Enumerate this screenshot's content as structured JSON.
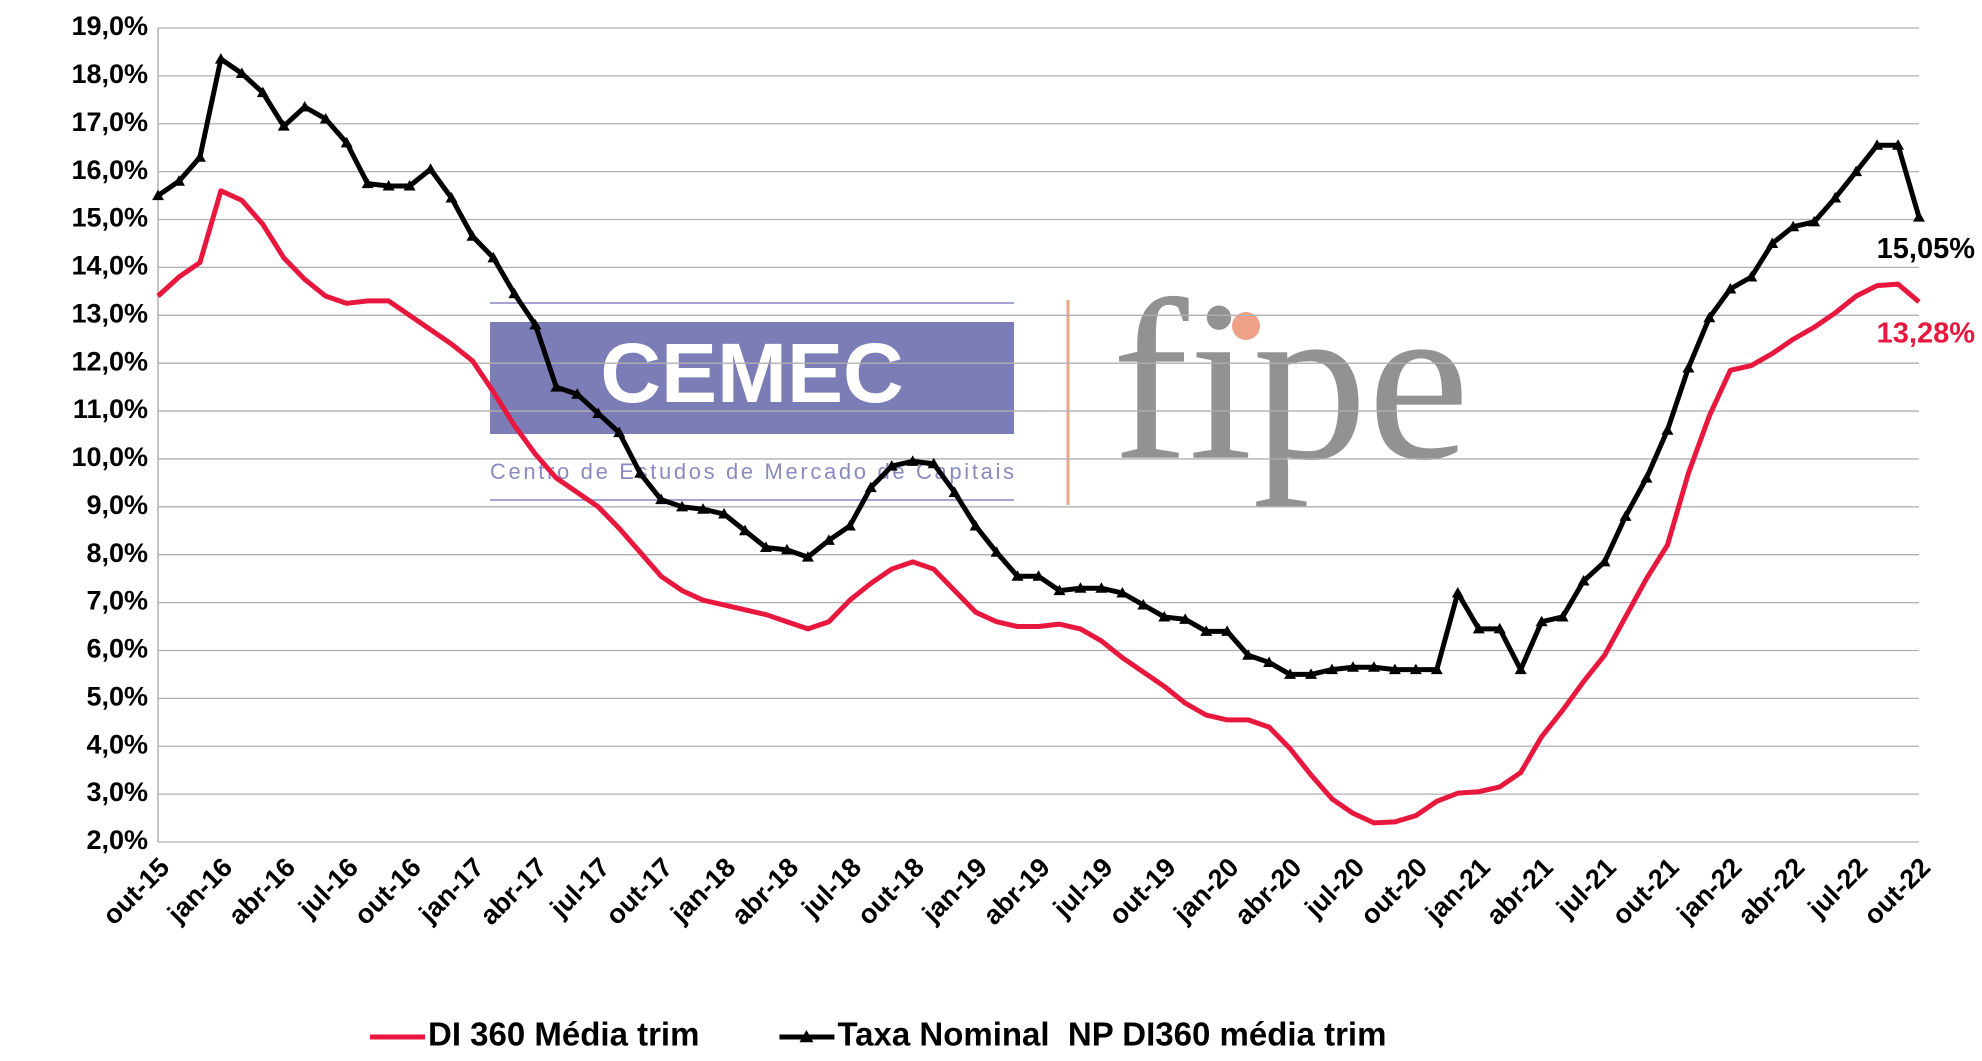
{
  "chart_data": {
    "type": "line",
    "categories": [
      "out-15",
      null,
      null,
      "jan-16",
      null,
      null,
      "abr-16",
      null,
      null,
      "jul-16",
      null,
      null,
      "out-16",
      null,
      null,
      "jan-17",
      null,
      null,
      "abr-17",
      null,
      null,
      "jul-17",
      null,
      null,
      "out-17",
      null,
      null,
      "jan-18",
      null,
      null,
      "abr-18",
      null,
      null,
      "jul-18",
      null,
      null,
      "out-18",
      null,
      null,
      "jan-19",
      null,
      null,
      "abr-19",
      null,
      null,
      "jul-19",
      null,
      null,
      "out-19",
      null,
      null,
      "jan-20",
      null,
      null,
      "abr-20",
      null,
      null,
      "jul-20",
      null,
      null,
      "out-20",
      null,
      null,
      "jan-21",
      null,
      null,
      "abr-21",
      null,
      null,
      "jul-21",
      null,
      null,
      "out-21",
      null,
      null,
      "jan-22",
      null,
      null,
      "abr-22",
      null,
      null,
      "jul-22",
      null,
      null,
      "out-22"
    ],
    "series": [
      {
        "name": "DI 360 Média trim",
        "color": "#e8173e",
        "marker": false,
        "values": [
          13.4,
          13.8,
          14.1,
          15.6,
          15.4,
          14.9,
          14.2,
          13.75,
          13.4,
          13.25,
          13.3,
          13.3,
          13.0,
          12.7,
          12.4,
          12.05,
          11.4,
          10.7,
          10.1,
          9.6,
          9.3,
          9.0,
          8.55,
          8.05,
          7.55,
          7.25,
          7.05,
          6.95,
          6.85,
          6.75,
          6.6,
          6.45,
          6.6,
          7.05,
          7.4,
          7.7,
          7.85,
          7.7,
          7.25,
          6.8,
          6.6,
          6.5,
          6.5,
          6.55,
          6.45,
          6.2,
          5.85,
          5.55,
          5.25,
          4.9,
          4.65,
          4.55,
          4.55,
          4.4,
          3.95,
          3.4,
          2.9,
          2.6,
          2.4,
          2.42,
          2.55,
          2.85,
          3.02,
          3.05,
          3.15,
          3.45,
          4.2,
          4.75,
          5.35,
          5.9,
          6.7,
          7.5,
          8.2,
          9.7,
          10.9,
          11.85,
          11.95,
          12.2,
          12.5,
          12.75,
          13.05,
          13.4,
          13.62,
          13.65,
          13.28
        ],
        "value_labels": [
          null,
          null,
          null,
          null,
          null,
          null,
          null,
          null,
          null,
          null,
          null,
          null,
          null,
          null,
          null,
          null,
          null,
          null,
          null,
          null,
          null,
          null,
          null,
          null,
          null,
          null,
          null,
          null,
          null,
          null,
          null,
          null,
          null,
          null,
          null,
          null,
          null,
          null,
          null,
          null,
          null,
          null,
          null,
          null,
          null,
          null,
          null,
          null,
          null,
          null,
          null,
          null,
          null,
          null,
          null,
          null,
          null,
          null,
          null,
          null,
          null,
          null,
          null,
          null,
          null,
          null,
          null,
          null,
          null,
          null,
          null,
          null,
          null,
          null,
          null,
          null,
          null,
          null,
          null,
          null,
          null,
          null,
          null,
          null,
          "13,28%"
        ]
      },
      {
        "name": "Taxa Nominal  NP DI360 média trim",
        "color": "#000000",
        "marker": true,
        "values": [
          15.5,
          15.8,
          16.3,
          18.35,
          18.05,
          17.65,
          16.95,
          17.35,
          17.1,
          16.6,
          15.75,
          15.7,
          15.7,
          16.05,
          15.45,
          14.65,
          14.2,
          13.45,
          12.8,
          11.5,
          11.35,
          10.95,
          10.55,
          9.7,
          9.15,
          9.0,
          8.95,
          8.85,
          8.5,
          8.15,
          8.1,
          7.95,
          8.3,
          8.6,
          9.4,
          9.85,
          9.95,
          9.9,
          9.3,
          8.6,
          8.05,
          7.55,
          7.55,
          7.25,
          7.3,
          7.3,
          7.2,
          6.95,
          6.7,
          6.65,
          6.4,
          6.4,
          5.9,
          5.75,
          5.5,
          5.5,
          5.6,
          5.65,
          5.65,
          5.6,
          5.6,
          5.6,
          7.2,
          6.45,
          6.45,
          5.6,
          6.6,
          6.7,
          7.45,
          7.85,
          8.8,
          9.6,
          10.6,
          11.9,
          12.95,
          13.55,
          13.8,
          14.5,
          14.85,
          14.95,
          15.45,
          16.0,
          16.55,
          16.55,
          15.05
        ],
        "value_labels": [
          null,
          null,
          null,
          null,
          null,
          null,
          null,
          null,
          null,
          null,
          null,
          null,
          null,
          null,
          null,
          null,
          null,
          null,
          null,
          null,
          null,
          null,
          null,
          null,
          null,
          null,
          null,
          null,
          null,
          null,
          null,
          null,
          null,
          null,
          null,
          null,
          null,
          null,
          null,
          null,
          null,
          null,
          null,
          null,
          null,
          null,
          null,
          null,
          null,
          null,
          null,
          null,
          null,
          null,
          null,
          null,
          null,
          null,
          null,
          null,
          null,
          null,
          null,
          null,
          null,
          null,
          null,
          null,
          null,
          null,
          null,
          null,
          null,
          null,
          null,
          null,
          null,
          null,
          null,
          null,
          null,
          null,
          null,
          null,
          "15,05%"
        ]
      }
    ],
    "ylim": [
      2,
      19
    ],
    "yticks": [
      {
        "value": 2,
        "label": "2,0%"
      },
      {
        "value": 3,
        "label": "3,0%"
      },
      {
        "value": 4,
        "label": "4,0%"
      },
      {
        "value": 5,
        "label": "5,0%"
      },
      {
        "value": 6,
        "label": "6,0%"
      },
      {
        "value": 7,
        "label": "7,0%"
      },
      {
        "value": 8,
        "label": "8,0%"
      },
      {
        "value": 9,
        "label": "9,0%"
      },
      {
        "value": 10,
        "label": "10,0%"
      },
      {
        "value": 11,
        "label": "11,0%"
      },
      {
        "value": 12,
        "label": "12,0%"
      },
      {
        "value": 13,
        "label": "13,0%"
      },
      {
        "value": 14,
        "label": "14,0%"
      },
      {
        "value": 15,
        "label": "15,0%"
      },
      {
        "value": 16,
        "label": "16,0%"
      },
      {
        "value": 17,
        "label": "17,0%"
      },
      {
        "value": 18,
        "label": "18,0%"
      },
      {
        "value": 19,
        "label": "19,0%"
      }
    ],
    "grid": true,
    "legend": "bottom"
  },
  "watermark": {
    "logo": "CEMEC",
    "logo_subtitle": "Centro de Estudos de Mercado de Capitais",
    "brand": "fipe"
  }
}
